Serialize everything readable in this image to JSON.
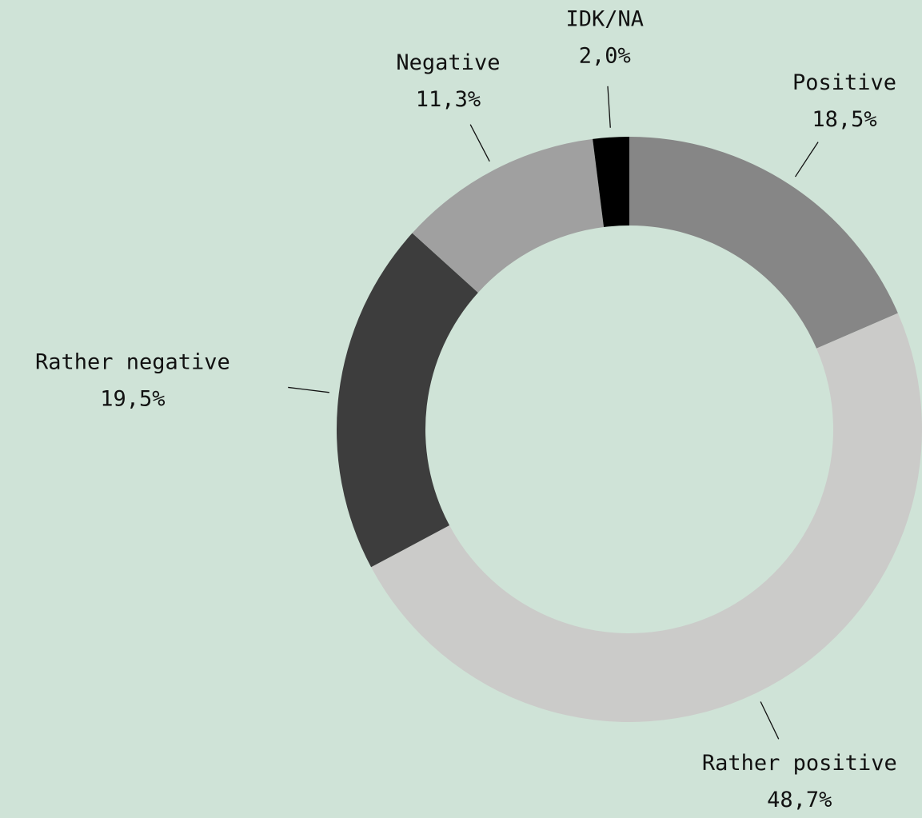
{
  "chart_data": {
    "type": "donut",
    "categories": [
      "Positive",
      "Rather positive",
      "Rather negative",
      "Negative",
      "IDK/NA"
    ],
    "values": [
      18.5,
      48.7,
      19.5,
      11.3,
      2.0
    ],
    "value_labels": [
      "18,5%",
      "48,7%",
      "19,5%",
      "11,3%",
      "2,0%"
    ],
    "colors": [
      "#868686",
      "#cbcbc9",
      "#3d3d3d",
      "#a0a0a0",
      "#000000"
    ]
  }
}
